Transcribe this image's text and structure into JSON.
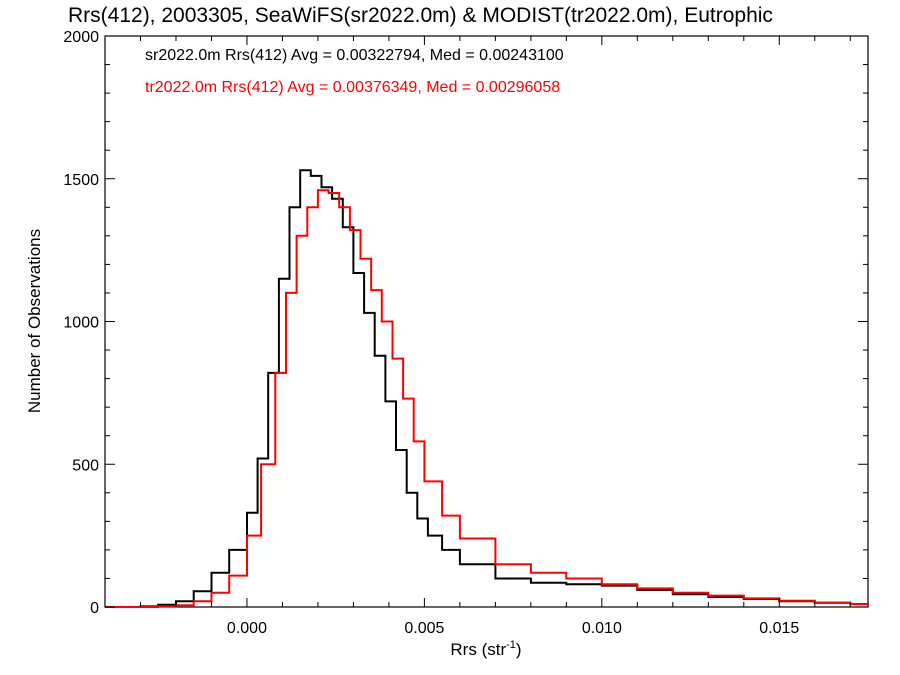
{
  "chart_data": {
    "type": "histogram",
    "title": "Rrs(412), 2003305, SeaWiFS(sr2022.0m) & MODIST(tr2022.0m), Eutrophic",
    "xlabel_main": "Rrs (str",
    "xlabel_sup": "-1",
    "xlabel_close": ")",
    "ylabel": "Number of Observations",
    "xlim": [
      -0.004,
      0.0175
    ],
    "ylim": [
      0,
      2000
    ],
    "xticks": [
      0.0,
      0.005,
      0.01,
      0.015
    ],
    "xtick_labels": [
      "0.000",
      "0.005",
      "0.010",
      "0.015"
    ],
    "yticks": [
      0,
      500,
      1000,
      1500,
      2000
    ],
    "ytick_labels": [
      "0",
      "500",
      "1000",
      "1500",
      "2000"
    ],
    "grid": false,
    "legend_position": "top-left",
    "series": [
      {
        "name": "sr2022.0m Rrs(412)",
        "legend_text": "sr2022.0m Rrs(412) Avg = 0.00322794, Med = 0.00243100",
        "avg": 0.00322794,
        "median": 0.002431,
        "color": "#000000",
        "points": [
          [
            -0.004,
            0
          ],
          [
            -0.003,
            2
          ],
          [
            -0.0025,
            8
          ],
          [
            -0.002,
            20
          ],
          [
            -0.0015,
            55
          ],
          [
            -0.001,
            120
          ],
          [
            -0.0005,
            200
          ],
          [
            0.0,
            330
          ],
          [
            0.0003,
            520
          ],
          [
            0.0006,
            820
          ],
          [
            0.0009,
            1150
          ],
          [
            0.0012,
            1400
          ],
          [
            0.0015,
            1530
          ],
          [
            0.0018,
            1510
          ],
          [
            0.0021,
            1470
          ],
          [
            0.0024,
            1430
          ],
          [
            0.0027,
            1330
          ],
          [
            0.003,
            1170
          ],
          [
            0.0033,
            1030
          ],
          [
            0.0036,
            880
          ],
          [
            0.0039,
            720
          ],
          [
            0.0042,
            550
          ],
          [
            0.0045,
            400
          ],
          [
            0.0048,
            310
          ],
          [
            0.0051,
            250
          ],
          [
            0.0055,
            200
          ],
          [
            0.006,
            150
          ],
          [
            0.007,
            100
          ],
          [
            0.008,
            85
          ],
          [
            0.009,
            80
          ],
          [
            0.01,
            75
          ],
          [
            0.011,
            60
          ],
          [
            0.012,
            45
          ],
          [
            0.013,
            35
          ],
          [
            0.014,
            28
          ],
          [
            0.015,
            20
          ],
          [
            0.016,
            15
          ],
          [
            0.017,
            10
          ],
          [
            0.0175,
            8
          ]
        ]
      },
      {
        "name": "tr2022.0m Rrs(412)",
        "legend_text": "tr2022.0m Rrs(412) Avg = 0.00376349, Med = 0.00296058",
        "avg": 0.00376349,
        "median": 0.00296058,
        "color": "#ff0000",
        "points": [
          [
            -0.004,
            0
          ],
          [
            -0.0025,
            2
          ],
          [
            -0.002,
            6
          ],
          [
            -0.0015,
            20
          ],
          [
            -0.001,
            50
          ],
          [
            -0.0005,
            110
          ],
          [
            0.0,
            250
          ],
          [
            0.0004,
            500
          ],
          [
            0.0008,
            820
          ],
          [
            0.0011,
            1100
          ],
          [
            0.0014,
            1300
          ],
          [
            0.0017,
            1400
          ],
          [
            0.002,
            1460
          ],
          [
            0.0023,
            1450
          ],
          [
            0.0026,
            1400
          ],
          [
            0.0029,
            1320
          ],
          [
            0.0032,
            1220
          ],
          [
            0.0035,
            1110
          ],
          [
            0.0038,
            1000
          ],
          [
            0.0041,
            870
          ],
          [
            0.0044,
            730
          ],
          [
            0.0047,
            580
          ],
          [
            0.005,
            440
          ],
          [
            0.0055,
            320
          ],
          [
            0.006,
            240
          ],
          [
            0.007,
            150
          ],
          [
            0.008,
            120
          ],
          [
            0.009,
            100
          ],
          [
            0.01,
            80
          ],
          [
            0.011,
            65
          ],
          [
            0.012,
            50
          ],
          [
            0.013,
            40
          ],
          [
            0.014,
            30
          ],
          [
            0.015,
            22
          ],
          [
            0.016,
            15
          ],
          [
            0.017,
            10
          ],
          [
            0.0175,
            8
          ]
        ]
      }
    ]
  }
}
